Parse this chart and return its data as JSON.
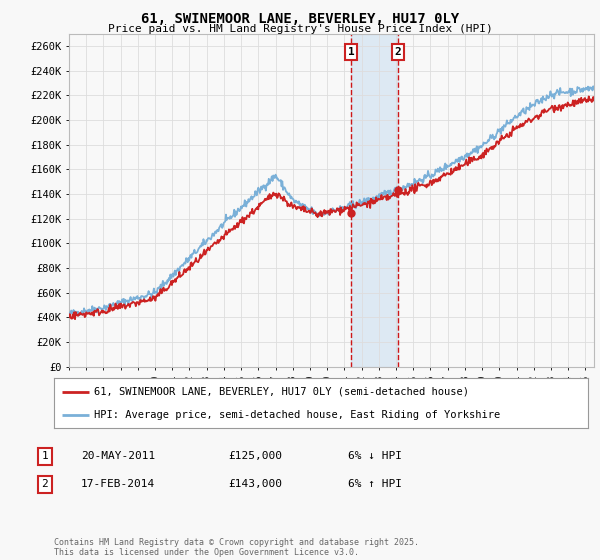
{
  "title": "61, SWINEMOOR LANE, BEVERLEY, HU17 0LY",
  "subtitle": "Price paid vs. HM Land Registry's House Price Index (HPI)",
  "background_color": "#f8f8f8",
  "plot_bg_color": "#f8f8f8",
  "grid_color": "#dddddd",
  "ylim": [
    0,
    270000
  ],
  "yticks": [
    0,
    20000,
    40000,
    60000,
    80000,
    100000,
    120000,
    140000,
    160000,
    180000,
    200000,
    220000,
    240000,
    260000
  ],
  "ytick_labels": [
    "£0",
    "£20K",
    "£40K",
    "£60K",
    "£80K",
    "£100K",
    "£120K",
    "£140K",
    "£160K",
    "£180K",
    "£200K",
    "£220K",
    "£240K",
    "£260K"
  ],
  "sale1_date": 2011.38,
  "sale1_price": 125000,
  "sale1_label": "1",
  "sale2_date": 2014.12,
  "sale2_price": 143000,
  "sale2_label": "2",
  "line_color_hpi": "#7ab0d8",
  "line_color_price": "#cc2222",
  "legend_label_price": "61, SWINEMOOR LANE, BEVERLEY, HU17 0LY (semi-detached house)",
  "legend_label_hpi": "HPI: Average price, semi-detached house, East Riding of Yorkshire",
  "table_row1": [
    "1",
    "20-MAY-2011",
    "£125,000",
    "6% ↓ HPI"
  ],
  "table_row2": [
    "2",
    "17-FEB-2014",
    "£143,000",
    "6% ↑ HPI"
  ],
  "footer": "Contains HM Land Registry data © Crown copyright and database right 2025.\nThis data is licensed under the Open Government Licence v3.0.",
  "shade_color": "#cce0f0",
  "vline_color": "#cc0000",
  "xlim_left": 1995,
  "xlim_right": 2025.5
}
